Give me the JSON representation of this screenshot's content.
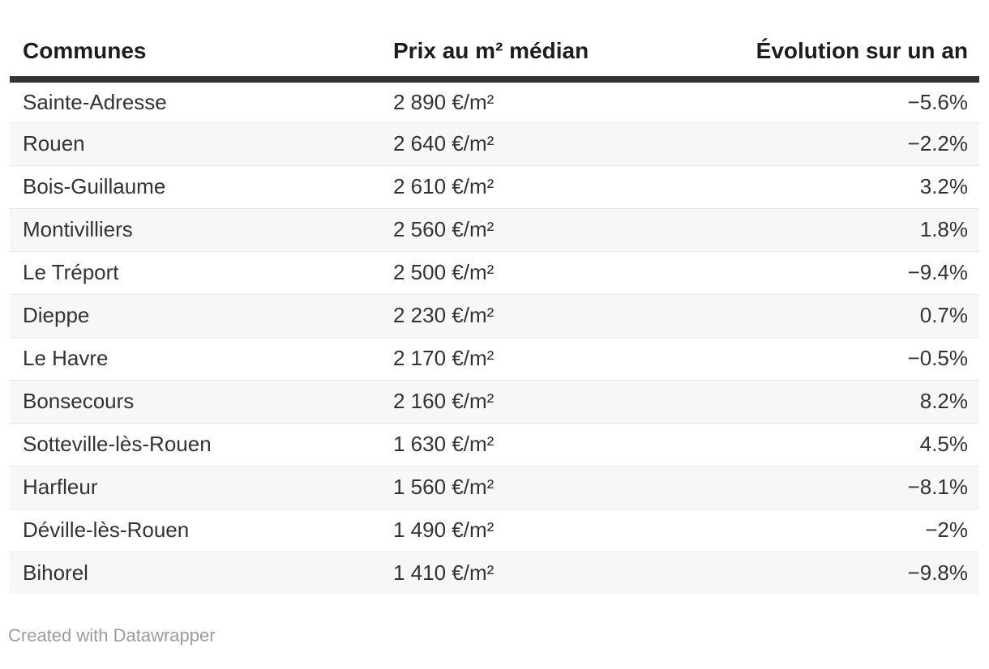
{
  "page": {
    "background": "#ffffff"
  },
  "table": {
    "columns": [
      {
        "id": "communes",
        "label": "Communes",
        "align": "left"
      },
      {
        "id": "prix",
        "label": "Prix au m² médian",
        "align": "left"
      },
      {
        "id": "evolution",
        "label": "Évolution sur un an",
        "align": "right"
      }
    ]
  },
  "footer": {
    "credit_label": "Created with Datawrapper"
  },
  "colors": {
    "header_text": "#1d1d1d",
    "body_text": "#333333",
    "header_rule": "#333333",
    "row_stripe": "#f7f7f7",
    "row_divider": "#e8e8e8",
    "credit_text": "#9c9c9c"
  },
  "chart_data": {
    "type": "table",
    "title": "",
    "columns": [
      "Communes",
      "Prix au m² médian",
      "Évolution sur un an"
    ],
    "header_align": [
      "left",
      "left",
      "right"
    ],
    "striped": true,
    "rows": [
      [
        "Sainte-Adresse",
        "2 890 €/m²",
        "−5.6%"
      ],
      [
        "Rouen",
        "2 640 €/m²",
        "−2.2%"
      ],
      [
        "Bois-Guillaume",
        "2 610 €/m²",
        "3.2%"
      ],
      [
        "Montivilliers",
        "2 560 €/m²",
        "1.8%"
      ],
      [
        "Le Tréport",
        "2 500 €/m²",
        "−9.4%"
      ],
      [
        "Dieppe",
        "2 230 €/m²",
        "0.7%"
      ],
      [
        "Le Havre",
        "2 170 €/m²",
        "−0.5%"
      ],
      [
        "Bonsecours",
        "2 160 €/m²",
        "8.2%"
      ],
      [
        "Sotteville-lès-Rouen",
        "1 630 €/m²",
        "4.5%"
      ],
      [
        "Harfleur",
        "1 560 €/m²",
        "−8.1%"
      ],
      [
        "Déville-lès-Rouen",
        "1 490 €/m²",
        "−2%"
      ],
      [
        "Bihorel",
        "1 410 €/m²",
        "−9.8%"
      ]
    ],
    "prices_eur_per_m2": [
      2890,
      2640,
      2610,
      2560,
      2500,
      2230,
      2170,
      2160,
      1630,
      1560,
      1490,
      1410
    ],
    "evolution_pct": [
      -5.6,
      -2.2,
      3.2,
      1.8,
      -9.4,
      0.7,
      -0.5,
      8.2,
      4.5,
      -8.1,
      -2,
      -9.8
    ]
  }
}
